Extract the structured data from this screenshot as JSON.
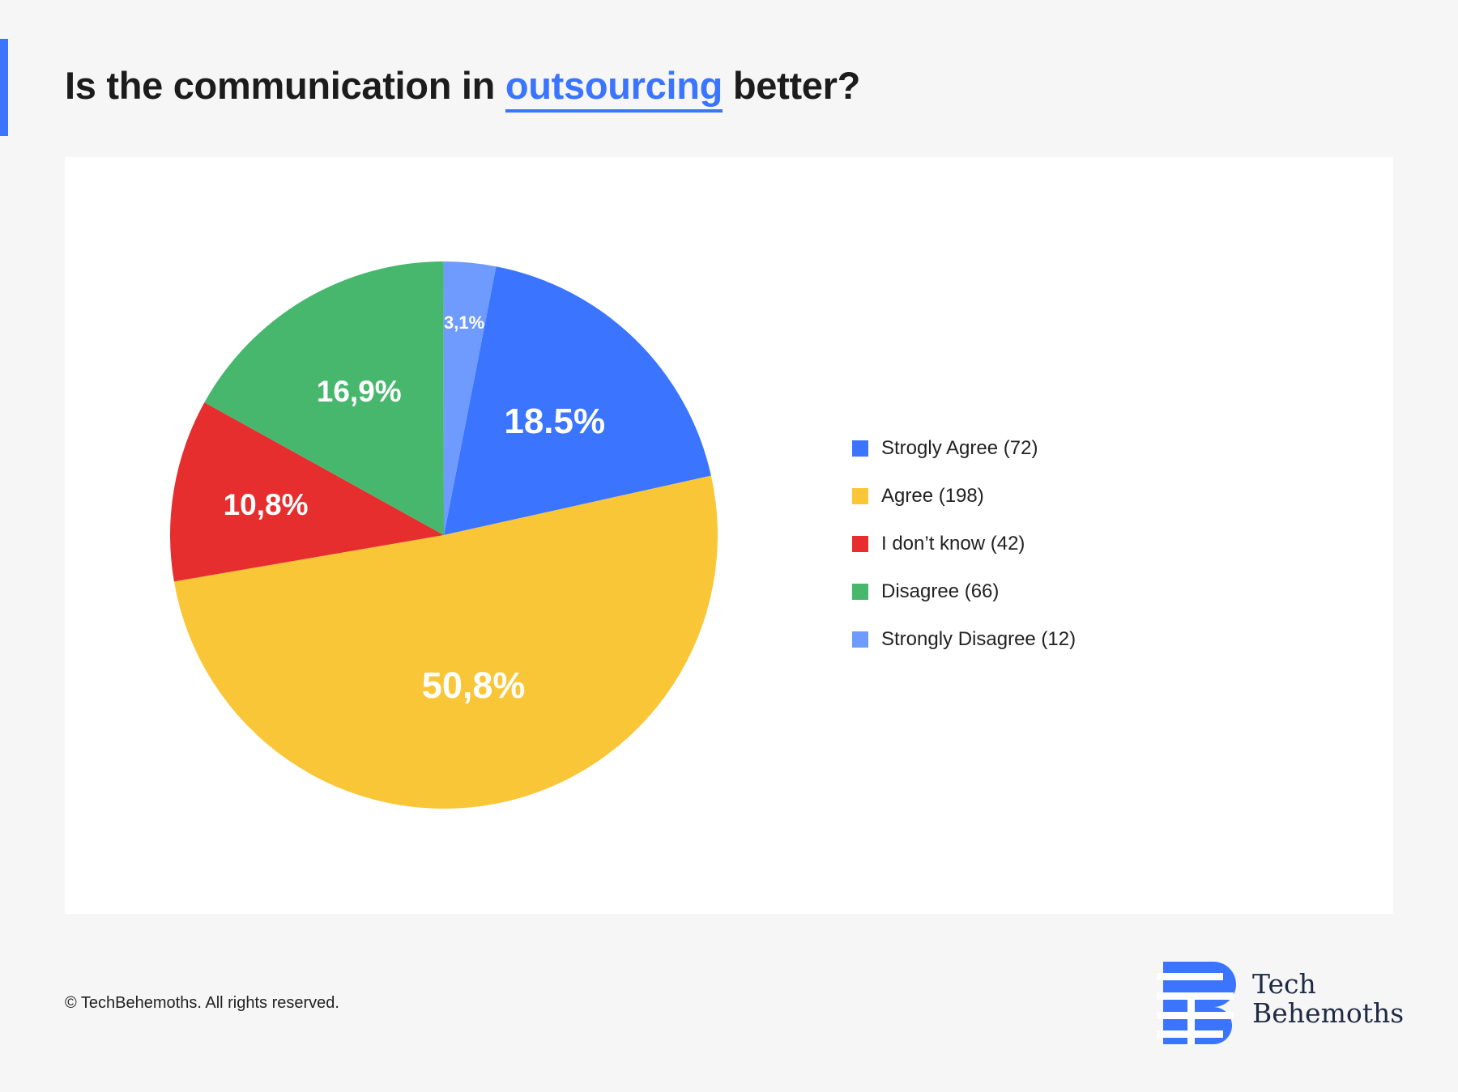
{
  "header": {
    "title_before": "Is the communication in",
    "title_highlight": "outsourcing",
    "title_after": "better?",
    "accent_color": "#3a74ff"
  },
  "chart_data": {
    "type": "pie",
    "title": "Is the communication in outsourcing better?",
    "legend_position": "right",
    "slices": [
      {
        "legend": "Strogly Agree (72)",
        "value": 72,
        "label": "18.5%",
        "color": "#3a74ff"
      },
      {
        "legend": "Agree (198)",
        "value": 198,
        "label": "50,8%",
        "color": "#f9c638"
      },
      {
        "legend": "I don’t know (42)",
        "value": 42,
        "label": "10,8%",
        "color": "#e62e2f"
      },
      {
        "legend": "Disagree (66)",
        "value": 66,
        "label": "16,9%",
        "color": "#46b76d"
      },
      {
        "legend": "Strongly Disagree (12)",
        "value": 12,
        "label": "3,1%",
        "color": "#6f9bff"
      }
    ]
  },
  "footer": {
    "copyright": "© TechBehemoths. All rights reserved."
  },
  "logo": {
    "line1": "Tech",
    "line2": "Behemoths",
    "brand_color": "#3a74ff",
    "text_color": "#1f2a44"
  }
}
